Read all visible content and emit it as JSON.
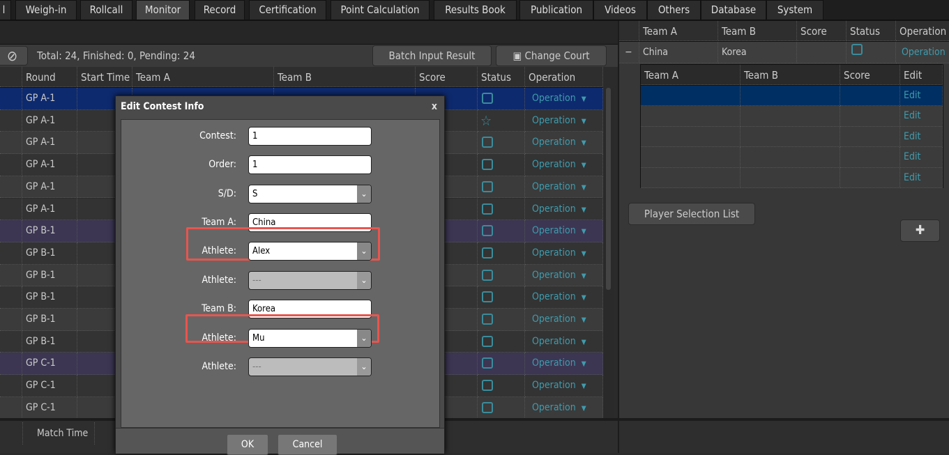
{
  "tabs": [
    "l",
    "Weigh-in",
    "Rollcall",
    "Monitor",
    "Record",
    "Certification",
    "Point Calculation",
    "Results Book",
    "Publication",
    "Videos",
    "Others",
    "Database",
    "System"
  ],
  "active_tab": "Monitor",
  "toolbar": {
    "summary": "Total: 24, Finished: 0, Pending: 24",
    "batch_label": "Batch Input Result",
    "change_court_label": "Change Court"
  },
  "grid": {
    "columns": [
      "",
      "Round",
      "Start Time",
      "Team A",
      "Team B",
      "Score",
      "Status",
      "Operation"
    ],
    "rows": [
      {
        "round": "GP A-1",
        "status": "checkbox",
        "op": "Operation"
      },
      {
        "round": "GP A-1",
        "status": "star",
        "op": "Operation"
      },
      {
        "round": "GP A-1",
        "status": "checkbox",
        "op": "Operation"
      },
      {
        "round": "GP A-1",
        "status": "checkbox",
        "op": "Operation"
      },
      {
        "round": "GP A-1",
        "status": "checkbox",
        "op": "Operation"
      },
      {
        "round": "GP A-1",
        "status": "checkbox",
        "op": "Operation"
      },
      {
        "round": "GP B-1",
        "status": "checkbox",
        "op": "Operation"
      },
      {
        "round": "GP B-1",
        "status": "checkbox",
        "op": "Operation"
      },
      {
        "round": "GP B-1",
        "status": "checkbox",
        "op": "Operation"
      },
      {
        "round": "GP B-1",
        "status": "checkbox",
        "op": "Operation"
      },
      {
        "round": "GP B-1",
        "status": "checkbox",
        "op": "Operation"
      },
      {
        "round": "GP B-1",
        "status": "checkbox",
        "op": "Operation"
      },
      {
        "round": "GP C-1",
        "status": "checkbox",
        "op": "Operation"
      },
      {
        "round": "GP C-1",
        "status": "checkbox",
        "op": "Operation"
      },
      {
        "round": "GP C-1",
        "status": "checkbox",
        "op": "Operation"
      }
    ]
  },
  "bottom": {
    "match_time": "Match Time"
  },
  "right": {
    "columns": [
      "Team A",
      "Team B",
      "Score",
      "Status",
      "Operation"
    ],
    "row": {
      "team_a": "China",
      "team_b": "Korea",
      "op": "Operation"
    },
    "sub_columns": [
      "Team A",
      "Team B",
      "Score",
      "Edit"
    ],
    "sub_rows": [
      "Edit",
      "Edit",
      "Edit",
      "Edit",
      "Edit"
    ],
    "player_list_label": "Player Selection List"
  },
  "dialog": {
    "title": "Edit Contest Info",
    "close": "x",
    "fields": [
      {
        "label": "Contest:",
        "value": "1",
        "type": "text"
      },
      {
        "label": "Order:",
        "value": "1",
        "type": "text"
      },
      {
        "label": "S/D:",
        "value": "S",
        "type": "select"
      },
      {
        "label": "Team A:",
        "value": "China",
        "type": "text"
      },
      {
        "label": "Athlete:",
        "value": "Alex",
        "type": "select",
        "highlight": true
      },
      {
        "label": "Athlete:",
        "value": "---",
        "type": "select",
        "disabled": true
      },
      {
        "label": "Team B:",
        "value": "Korea",
        "type": "text"
      },
      {
        "label": "Athlete:",
        "value": "Mu",
        "type": "select",
        "highlight": true
      },
      {
        "label": "Athlete:",
        "value": "---",
        "type": "select",
        "disabled": true
      }
    ],
    "ok": "OK",
    "cancel": "Cancel"
  },
  "colors": {
    "selected_row": "#0e2a6e",
    "group_row": "#3c3653",
    "link": "#3f9bad",
    "highlight": "#e8554e"
  }
}
